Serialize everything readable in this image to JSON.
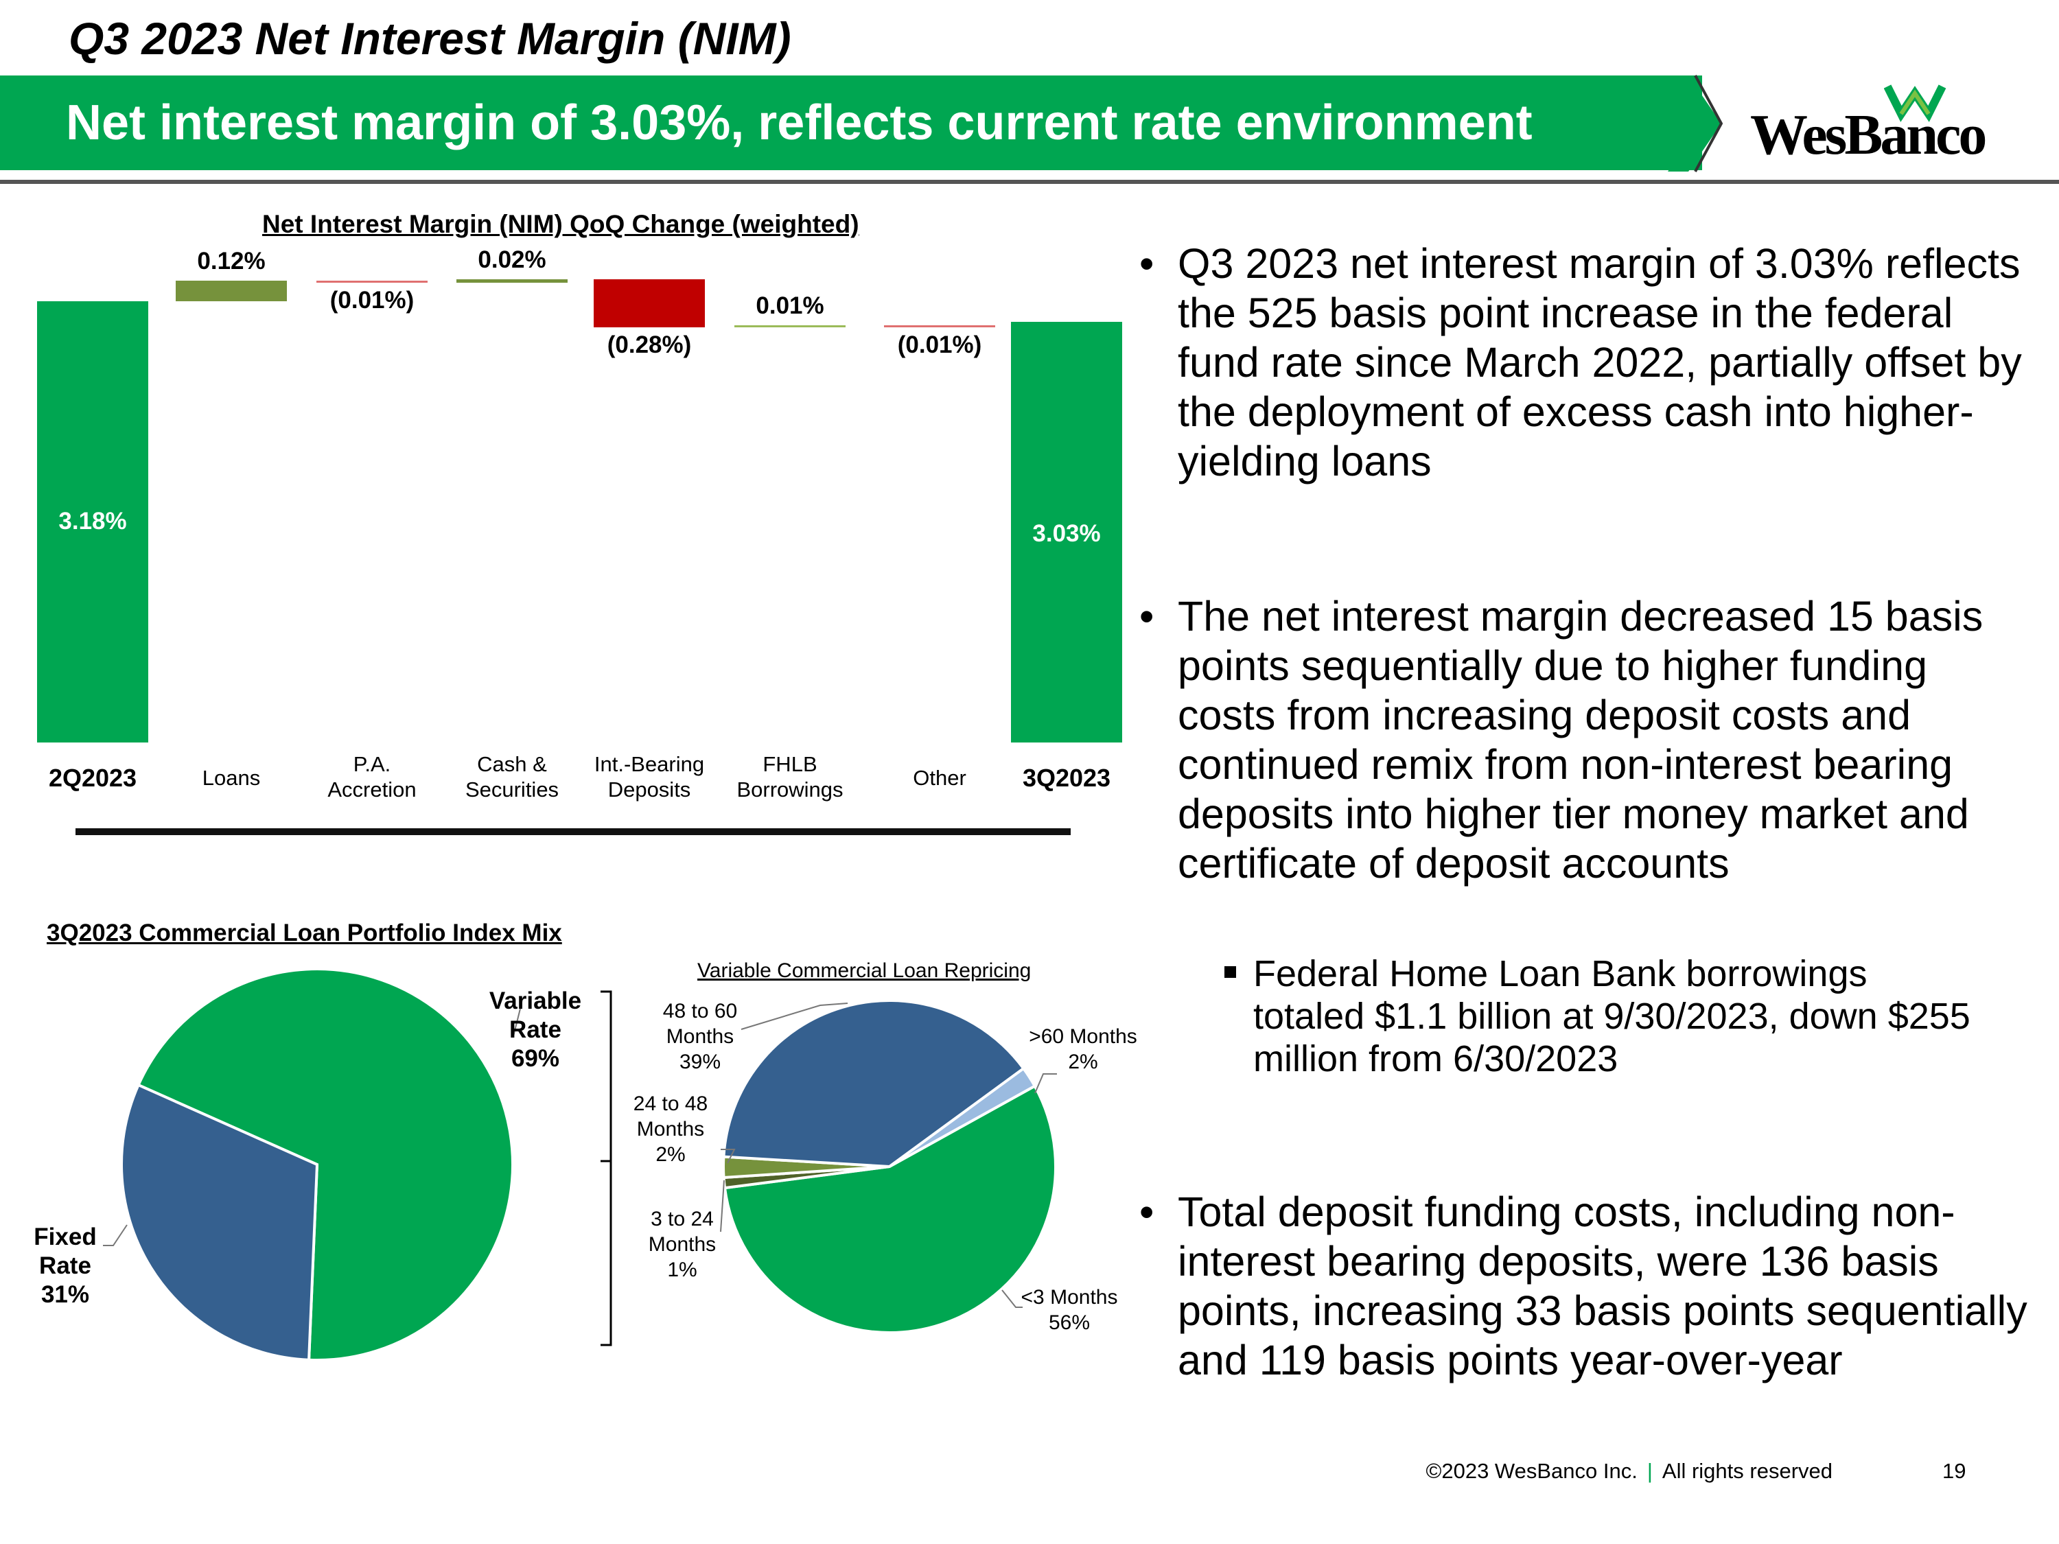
{
  "header": {
    "title": "Q3 2023 Net Interest Margin (NIM)",
    "banner": "Net interest margin of 3.03%, reflects current rate environment",
    "logo_text": "WesBanco"
  },
  "colors": {
    "green": "#00a651",
    "olive": "#76923c",
    "red": "#c00000",
    "blue": "#35608f",
    "light_blue": "#9bbbe0",
    "dark_olive": "#4f6228"
  },
  "chart_data": [
    {
      "type": "waterfall",
      "title": "Net Interest Margin (NIM) QoQ Change (weighted)",
      "categories": [
        "2Q2023",
        "Loans",
        "P.A. Accretion",
        "Cash & Securities",
        "Int.-Bearing Deposits",
        "FHLB Borrowings",
        "Other",
        "3Q2023"
      ],
      "category_lines": [
        [
          "2Q2023"
        ],
        [
          "Loans"
        ],
        [
          "P.A.",
          "Accretion"
        ],
        [
          "Cash &",
          "Securities"
        ],
        [
          "Int.-Bearing",
          "Deposits"
        ],
        [
          "FHLB",
          "Borrowings"
        ],
        [
          "Other"
        ],
        [
          "3Q2023"
        ]
      ],
      "values": [
        3.18,
        0.12,
        -0.01,
        0.02,
        -0.28,
        0.01,
        -0.01,
        3.03
      ],
      "labels": [
        "3.18%",
        "0.12%",
        "(0.01%)",
        "0.02%",
        "(0.28%)",
        "0.01%",
        "(0.01%)",
        "3.03%"
      ],
      "kinds": [
        "total",
        "delta",
        "delta",
        "delta",
        "delta",
        "delta",
        "delta",
        "total"
      ],
      "unit": "%"
    },
    {
      "type": "pie",
      "title": "3Q2023 Commercial Loan Portfolio Index Mix",
      "slices": [
        {
          "name": "Variable Rate",
          "value": 69,
          "label_lines": [
            "Variable",
            "Rate",
            "69%"
          ]
        },
        {
          "name": "Fixed Rate",
          "value": 31,
          "label_lines": [
            "Fixed",
            "Rate",
            "31%"
          ]
        }
      ]
    },
    {
      "type": "pie",
      "title": "Variable Commercial Loan Repricing",
      "slices": [
        {
          "name": "<3 Months",
          "value": 56,
          "label_lines": [
            "<3 Months",
            "56%"
          ]
        },
        {
          "name": "3 to 24 Months",
          "value": 1,
          "label_lines": [
            "3 to 24",
            "Months",
            "1%"
          ]
        },
        {
          "name": "24 to 48 Months",
          "value": 2,
          "label_lines": [
            "24 to 48",
            "Months",
            "2%"
          ]
        },
        {
          "name": "48 to 60 Months",
          "value": 39,
          "label_lines": [
            "48 to 60",
            "Months",
            "39%"
          ]
        },
        {
          "name": ">60 Months",
          "value": 2,
          "label_lines": [
            ">60 Months",
            "2%"
          ]
        }
      ]
    }
  ],
  "bullets": [
    "Q3 2023 net interest margin of 3.03% reflects the 525 basis point increase in the federal fund rate since March 2022, partially offset by the deployment of excess cash into higher-yielding loans",
    "The net interest margin decreased 15 basis points sequentially due to higher funding costs from increasing deposit costs and continued remix from non-interest bearing deposits into higher tier money market and certificate of deposit accounts",
    "Total deposit funding costs, including non-interest bearing deposits, were 136 basis points, increasing 33 basis points sequentially and 119 basis points year-over-year"
  ],
  "sub_bullet": "Federal Home Loan Bank borrowings totaled $1.1 billion at 9/30/2023, down $255 million from 6/30/2023",
  "bullet_marker": "•",
  "footer": {
    "copyright": "©2023 WesBanco Inc.",
    "separator": "|",
    "rights": "All rights reserved",
    "page": "19"
  }
}
